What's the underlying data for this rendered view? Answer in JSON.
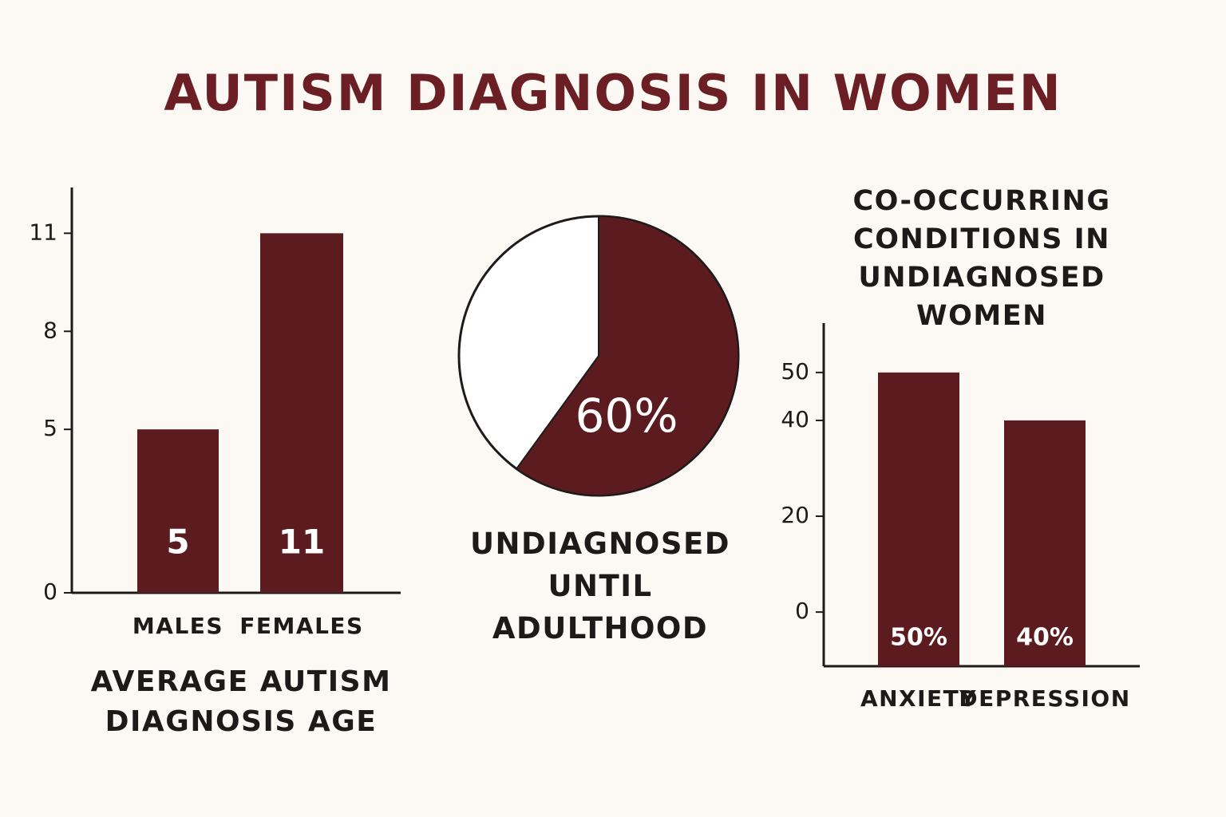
{
  "title": "AUTISM DIAGNOSIS IN WOMEN",
  "chart_data": [
    {
      "type": "bar",
      "title": "AVERAGE AUTISM DIAGNOSIS AGE",
      "categories": [
        "MALES",
        "FEMALES"
      ],
      "values": [
        5,
        11
      ],
      "value_labels": [
        "5",
        "11"
      ],
      "color": "#5c1b1f",
      "ylim": [
        0,
        12.4
      ],
      "yticks": [
        0,
        5,
        8,
        11
      ]
    },
    {
      "type": "pie",
      "title": "UNDIAGNOSED UNTIL ADULTHOOD",
      "values": [
        60
      ],
      "value_labels": [
        "60%"
      ],
      "color": "#5c1b1f"
    },
    {
      "type": "bar",
      "title": "CO-OCCURRING CONDITIONS IN UNDIAGNOSED WOMEN",
      "categories": [
        "ANXIETY",
        "DEPRESSION"
      ],
      "values": [
        50,
        40
      ],
      "value_labels": [
        "50%",
        "40%"
      ],
      "color": "#5c1b1f",
      "ylim": [
        -11.3,
        60.3
      ],
      "yticks": [
        0,
        20,
        40,
        50
      ]
    }
  ]
}
